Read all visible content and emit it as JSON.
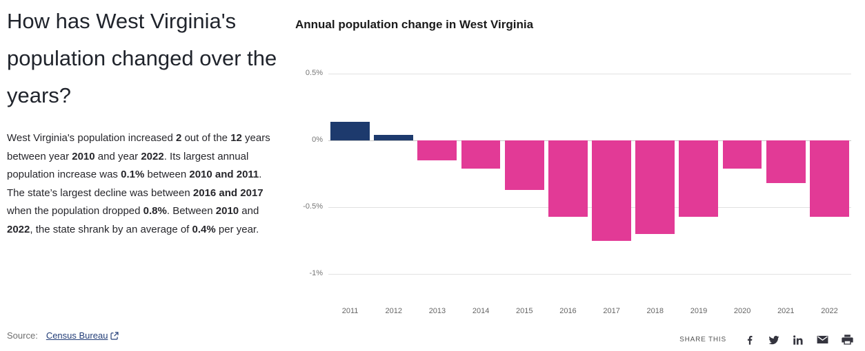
{
  "article": {
    "title": "How has West Virginia's population changed over the years?",
    "paragraph": [
      {
        "text": "West Virginia's population increased ",
        "bold": false
      },
      {
        "text": "2",
        "bold": true
      },
      {
        "text": " out of the ",
        "bold": false
      },
      {
        "text": "12",
        "bold": true
      },
      {
        "text": " years between year ",
        "bold": false
      },
      {
        "text": "2010",
        "bold": true
      },
      {
        "text": " and year ",
        "bold": false
      },
      {
        "text": "2022",
        "bold": true
      },
      {
        "text": ". Its largest annual population increase was ",
        "bold": false
      },
      {
        "text": "0.1%",
        "bold": true
      },
      {
        "text": " between ",
        "bold": false
      },
      {
        "text": "2010 and 2011",
        "bold": true
      },
      {
        "text": ". The state’s largest decline was between ",
        "bold": false
      },
      {
        "text": "2016 and 2017",
        "bold": true
      },
      {
        "text": " when the population dropped ",
        "bold": false
      },
      {
        "text": "0.8%",
        "bold": true
      },
      {
        "text": ". Between ",
        "bold": false
      },
      {
        "text": "2010",
        "bold": true
      },
      {
        "text": " and ",
        "bold": false
      },
      {
        "text": "2022",
        "bold": true
      },
      {
        "text": ", the state shrank by an average of ",
        "bold": false
      },
      {
        "text": "0.4%",
        "bold": true
      },
      {
        "text": " per year.",
        "bold": false
      }
    ],
    "source_label": "Source:",
    "source_link_text": "Census Bureau",
    "source_icon": "external-link-icon"
  },
  "chart": {
    "title": "Annual population change in West Virginia"
  },
  "chart_data": {
    "type": "bar",
    "title": "Annual population change in West Virginia",
    "categories": [
      "2011",
      "2012",
      "2013",
      "2014",
      "2015",
      "2016",
      "2017",
      "2018",
      "2019",
      "2020",
      "2021",
      "2022"
    ],
    "values": [
      0.14,
      0.04,
      -0.15,
      -0.21,
      -0.37,
      -0.57,
      -0.75,
      -0.7,
      -0.57,
      -0.21,
      -0.32,
      -0.57
    ],
    "unit": "%",
    "xlabel": "",
    "ylabel": "",
    "ylim": [
      -1.05,
      0.65
    ],
    "yticks": [
      {
        "label": "0.5%",
        "value": 0.5
      },
      {
        "label": "0%",
        "value": 0
      },
      {
        "label": "-0.5%",
        "value": -0.5
      },
      {
        "label": "-1%",
        "value": -1
      }
    ],
    "grid": true,
    "legend": "none",
    "colors": {
      "positive": "#1d3a6d",
      "negative": "#e23a96"
    }
  },
  "share": {
    "label": "SHARE THIS",
    "buttons": [
      {
        "icon": "facebook-icon"
      },
      {
        "icon": "twitter-icon"
      },
      {
        "icon": "linkedin-icon"
      },
      {
        "icon": "email-icon"
      },
      {
        "icon": "print-icon"
      }
    ]
  }
}
